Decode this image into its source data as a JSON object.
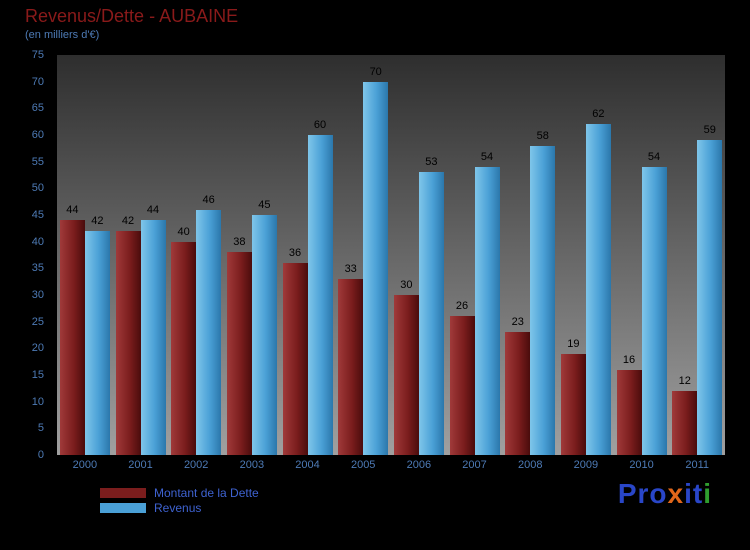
{
  "title": "Revenus/Dette - AUBAINE",
  "subtitle": "(en milliers d'€)",
  "chart_data": {
    "type": "bar",
    "title": "Revenus/Dette - AUBAINE",
    "subtitle": "(en milliers d'€)",
    "xlabel": "",
    "ylabel": "",
    "categories": [
      "2000",
      "2001",
      "2002",
      "2003",
      "2004",
      "2005",
      "2006",
      "2007",
      "2008",
      "2009",
      "2010",
      "2011"
    ],
    "series": [
      {
        "key": "dette",
        "name": "Montant de la Dette",
        "color_light": "#a03a3a",
        "color": "#7b1d1d",
        "color_dark": "#4a0c0c",
        "values": [
          44,
          42,
          40,
          38,
          36,
          33,
          30,
          26,
          23,
          19,
          16,
          12
        ]
      },
      {
        "key": "revenus",
        "name": "Revenus",
        "color_light": "#7fc6ea",
        "color": "#4aa0d6",
        "color_dark": "#2b77ab",
        "values": [
          42,
          44,
          46,
          45,
          60,
          70,
          53,
          54,
          58,
          62,
          54,
          59
        ]
      }
    ],
    "ylim": [
      0,
      75
    ],
    "yticks": [
      0,
      5,
      10,
      15,
      20,
      25,
      30,
      35,
      40,
      45,
      50,
      55,
      60,
      65,
      70,
      75
    ],
    "grid": false,
    "legend_position": "bottom-left"
  },
  "legend": {
    "items": [
      {
        "label": "Montant de la Dette",
        "color": "#7b1d1d"
      },
      {
        "label": "Revenus",
        "color": "#4aa0d6"
      }
    ]
  },
  "logo": {
    "text": "Proxiti",
    "letters": [
      {
        "ch": "P",
        "color": "#2946c8"
      },
      {
        "ch": "r",
        "color": "#2946c8"
      },
      {
        "ch": "o",
        "color": "#2946c8"
      },
      {
        "ch": "x",
        "color": "#e0661a"
      },
      {
        "ch": "i",
        "color": "#2946c8"
      },
      {
        "ch": "t",
        "color": "#2946c8"
      },
      {
        "ch": "i",
        "color": "#2f9e2f"
      }
    ]
  },
  "colors": {
    "background": "#000000",
    "title": "#8a1a1a",
    "subtitle": "#4d7ab5",
    "axis_text": "#4d7ab5",
    "value_label": "#000000",
    "legend_text": "#3e62d0",
    "plot_top": "#2e2e2e",
    "plot_bottom": "#a0a0a0"
  }
}
